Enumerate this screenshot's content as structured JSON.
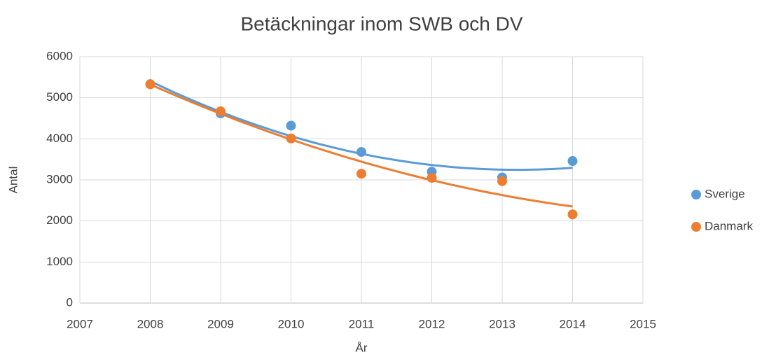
{
  "chart_data": {
    "type": "scatter",
    "title": "Betäckningar inom SWB och DV",
    "x_label": "År",
    "y_label": "Antal",
    "series": [
      {
        "name": "Sverige",
        "color": "#5b9bd5",
        "x": [
          2008,
          2009,
          2010,
          2011,
          2012,
          2013,
          2014
        ],
        "values": [
          5330,
          4620,
          4320,
          3680,
          3200,
          3060,
          3460
        ]
      },
      {
        "name": "Danmark",
        "color": "#ed7d31",
        "x": [
          2008,
          2009,
          2010,
          2011,
          2012,
          2013,
          2014
        ],
        "values": [
          5330,
          4670,
          4010,
          3150,
          3050,
          2970,
          2160
        ]
      }
    ],
    "xlim": [
      2007,
      2015
    ],
    "xticks": [
      2007,
      2008,
      2009,
      2010,
      2011,
      2012,
      2013,
      2014,
      2015
    ],
    "ylim": [
      0,
      6000
    ],
    "yticks": [
      0,
      1000,
      2000,
      3000,
      4000,
      5000,
      6000
    ],
    "grid": true,
    "legend": "right",
    "trendline": "polynomial"
  }
}
